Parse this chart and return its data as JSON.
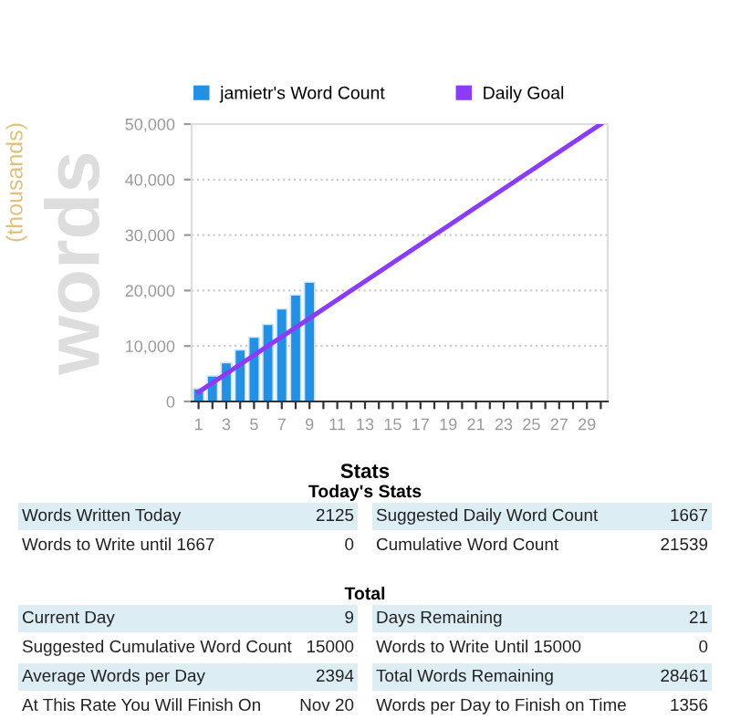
{
  "chart_data": [
    {
      "type": "bar",
      "ylabel": "words",
      "annotations": [
        "(thousands)"
      ],
      "x": [
        1,
        2,
        3,
        4,
        5,
        6,
        7,
        8,
        9
      ],
      "series": [
        {
          "name": "jamietr's Word Count",
          "type": "bar",
          "color": "#2490e3",
          "values": [
            2300,
            4600,
            7000,
            9300,
            11600,
            13900,
            16700,
            19200,
            21500
          ]
        },
        {
          "name": "Daily Goal",
          "type": "line",
          "color": "#8b3cf7",
          "x": [
            1,
            9,
            30
          ],
          "values": [
            1700,
            15000,
            50000
          ]
        }
      ],
      "xlim": [
        0.5,
        30.5
      ],
      "xticks": [
        1,
        {
          "value": 2,
          "label": null
        },
        3,
        {
          "value": 4,
          "label": null
        },
        5,
        {
          "value": 6,
          "label": null
        },
        7,
        {
          "value": 8,
          "label": null
        },
        9,
        {
          "value": 10,
          "label": null
        },
        11,
        {
          "value": 12,
          "label": null
        },
        13,
        {
          "value": 14,
          "label": null
        },
        15,
        {
          "value": 16,
          "label": null
        },
        17,
        {
          "value": 18,
          "label": null
        },
        19,
        {
          "value": 20,
          "label": null
        },
        21,
        {
          "value": 22,
          "label": null
        },
        23,
        {
          "value": 24,
          "label": null
        },
        25,
        {
          "value": 26,
          "label": null
        },
        27,
        {
          "value": 28,
          "label": null
        },
        29,
        {
          "value": 30,
          "label": null
        }
      ],
      "ylim": [
        0,
        50000
      ],
      "yticks": [
        0,
        {
          "value": 10000,
          "label": "10,000"
        },
        {
          "value": 20000,
          "label": "20,000"
        },
        {
          "value": 30000,
          "label": "30,000"
        },
        {
          "value": 40000,
          "label": "40,000"
        },
        {
          "value": 50000,
          "label": "50,000"
        }
      ],
      "grid": "y",
      "legend": "top",
      "marker": "none",
      "line_style": "solid"
    },
    {
      "type": "other",
      "title": "Stats",
      "annotations": [
        "Today's Stats",
        "Words Written Today",
        "2125",
        "Suggested Daily Word Count",
        "1667",
        "Words to Write until 1667",
        "0",
        "Cumulative Word Count",
        "21539",
        "Total",
        "Current Day",
        "9",
        "Days Remaining",
        "21",
        "Suggested Cumulative Word Count",
        "15000",
        "Words to Write Until 15000",
        "0",
        "Average Words per Day",
        "2394",
        "Total Words Remaining",
        "28461",
        "At This Rate You Will Finish On",
        "Nov 20",
        "Words per Day to Finish on Time",
        "1356"
      ]
    }
  ]
}
